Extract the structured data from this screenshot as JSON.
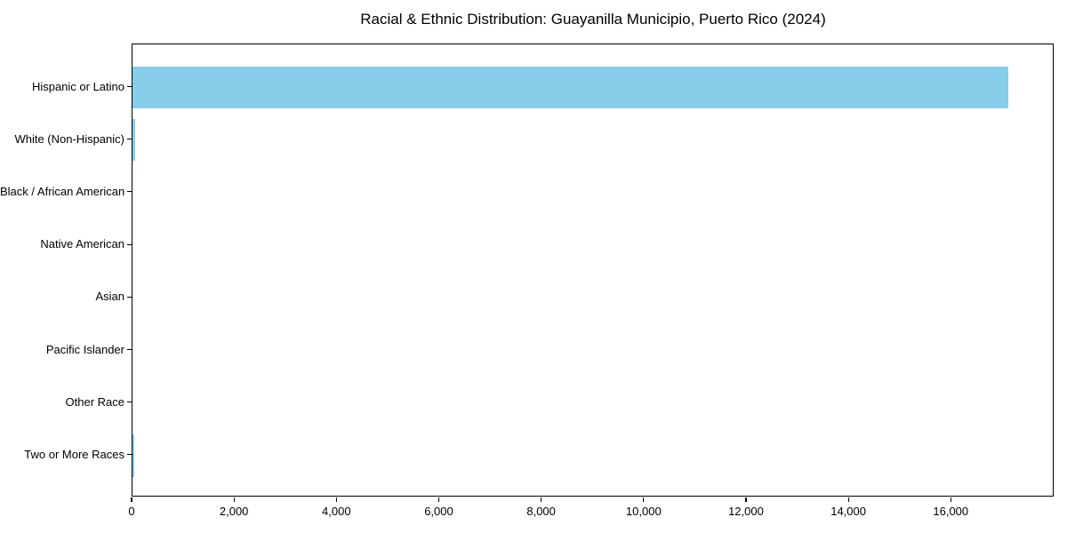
{
  "title": "Racial & Ethnic Distribution: Guayanilla Municipio, Puerto Rico (2024)",
  "chart_data": {
    "type": "bar",
    "orientation": "horizontal",
    "title": "Racial & Ethnic Distribution: Guayanilla Municipio, Puerto Rico (2024)",
    "categories": [
      "Hispanic or Latino",
      "White (Non-Hispanic)",
      "Black / African American",
      "Native American",
      "Asian",
      "Pacific Islander",
      "Other Race",
      "Two or More Races"
    ],
    "values": [
      17100,
      50,
      0,
      0,
      0,
      0,
      0,
      30
    ],
    "xlabel": "",
    "ylabel": "",
    "xlim": [
      0,
      17975
    ],
    "xticks": [
      0,
      2000,
      4000,
      6000,
      8000,
      10000,
      12000,
      14000,
      16000
    ],
    "xtick_labels": [
      "0",
      "2,000",
      "4,000",
      "6,000",
      "8,000",
      "10,000",
      "12,000",
      "14,000",
      "16,000"
    ],
    "grid": false,
    "legend": "none",
    "bar_color": "#87CEEB",
    "text_color": "#000000",
    "background_color": "#ffffff"
  }
}
